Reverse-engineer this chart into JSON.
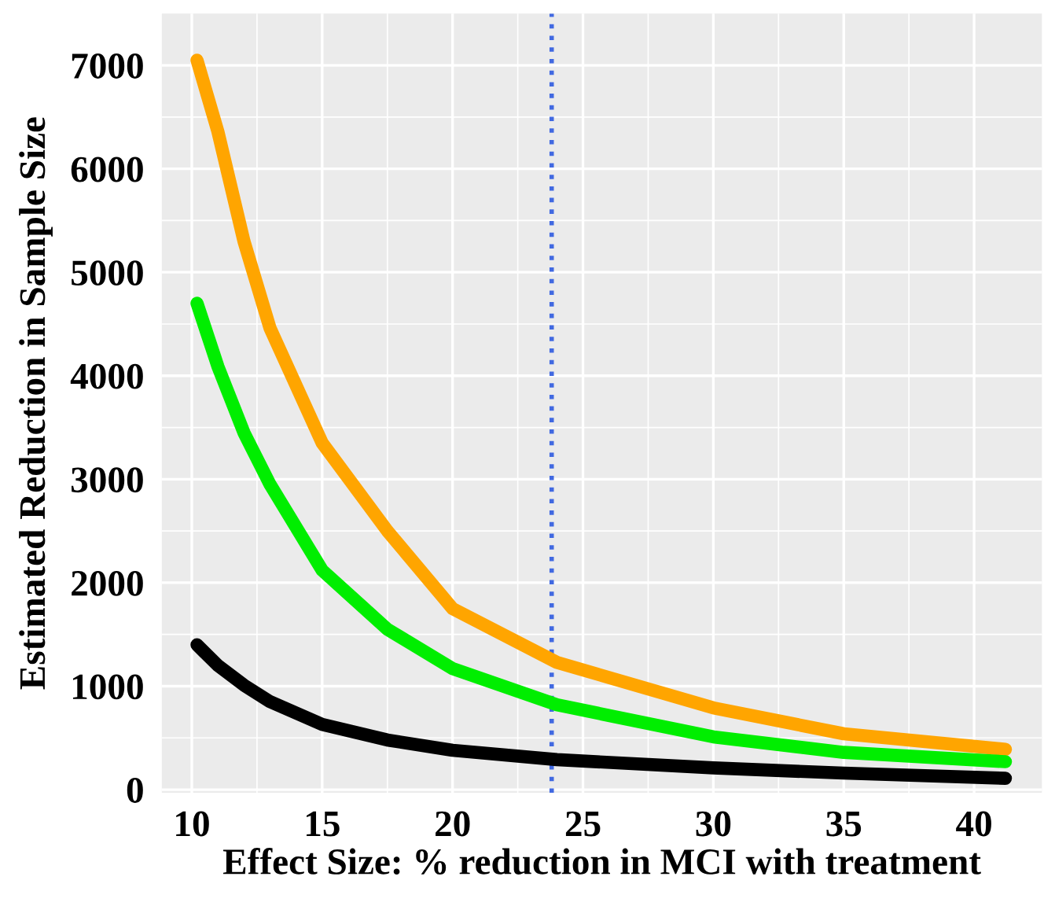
{
  "chart_data": {
    "type": "line",
    "xlabel": "Effect Size: % reduction in MCI with treatment",
    "ylabel": "Estimated Reduction in Sample Size",
    "xlim": [
      8.85,
      42.6
    ],
    "ylim": [
      -30,
      7500
    ],
    "xticks": [
      10,
      15,
      20,
      25,
      30,
      35,
      40
    ],
    "yticks": [
      0,
      1000,
      2000,
      3000,
      4000,
      5000,
      6000,
      7000
    ],
    "grid": true,
    "line_style": "solid",
    "marker": "none",
    "series": [
      {
        "color": "#ffa500",
        "x": [
          10.2,
          11,
          12,
          13,
          15,
          17.5,
          20,
          24,
          30,
          35,
          41.2
        ],
        "values": [
          7050,
          6360,
          5300,
          4460,
          3350,
          2500,
          1750,
          1230,
          790,
          540,
          390
        ]
      },
      {
        "color": "#00ee00",
        "x": [
          10.2,
          11,
          12,
          13,
          15,
          17.5,
          20,
          24,
          30,
          35,
          41.2
        ],
        "values": [
          4700,
          4090,
          3450,
          2950,
          2120,
          1550,
          1170,
          820,
          510,
          360,
          270
        ]
      },
      {
        "color": "#000000",
        "x": [
          10.2,
          11,
          12,
          13,
          15,
          17.5,
          20,
          24,
          30,
          35,
          41.2
        ],
        "values": [
          1400,
          1200,
          1010,
          850,
          630,
          480,
          380,
          290,
          210,
          160,
          110
        ]
      }
    ],
    "ref_lines": [
      {
        "axis": "x",
        "value": 23.8,
        "color": "#4169e1",
        "line_style": "dotted"
      }
    ]
  }
}
